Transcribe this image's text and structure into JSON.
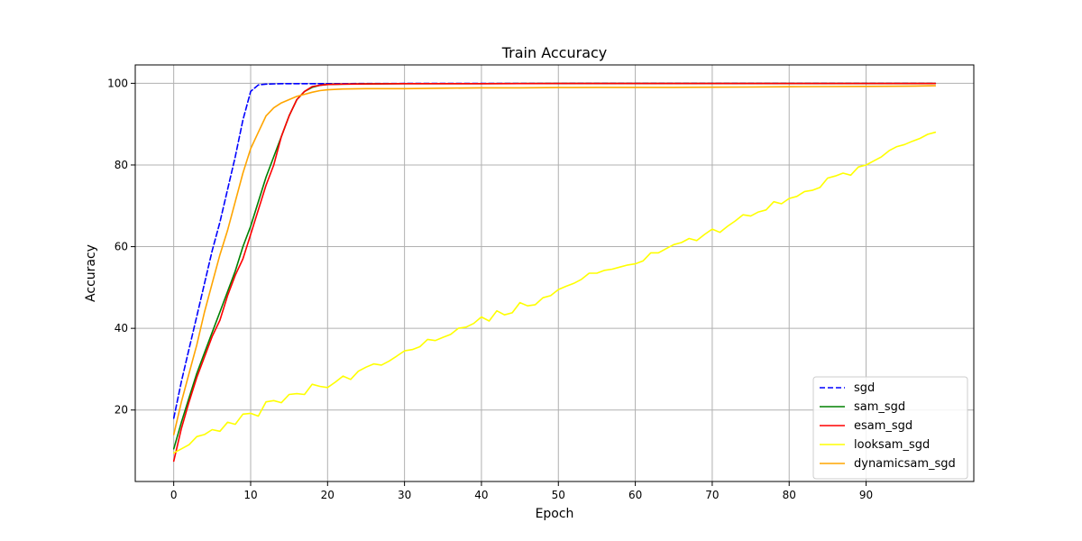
{
  "chart_data": {
    "type": "line",
    "title": "Train Accuracy",
    "xlabel": "Epoch",
    "ylabel": "Accuracy",
    "xlim": [
      -5,
      104
    ],
    "ylim": [
      2.5,
      104.5
    ],
    "xticks": [
      0,
      10,
      20,
      30,
      40,
      50,
      60,
      70,
      80,
      90
    ],
    "yticks": [
      20,
      40,
      60,
      80,
      100
    ],
    "grid": true,
    "legend_position": "bottom-right",
    "series": [
      {
        "name": "sgd",
        "color": "#0000ff",
        "dash": true,
        "points": [
          [
            0,
            18
          ],
          [
            1,
            27
          ],
          [
            2,
            35
          ],
          [
            3,
            43
          ],
          [
            4,
            51
          ],
          [
            5,
            59
          ],
          [
            6,
            66
          ],
          [
            7,
            74
          ],
          [
            8,
            82
          ],
          [
            9,
            91
          ],
          [
            10,
            98
          ],
          [
            11,
            99.6
          ],
          [
            12,
            99.8
          ],
          [
            14,
            99.9
          ],
          [
            20,
            99.9
          ],
          [
            30,
            99.95
          ],
          [
            40,
            99.97
          ],
          [
            50,
            99.98
          ],
          [
            60,
            99.99
          ],
          [
            70,
            100
          ],
          [
            80,
            100
          ],
          [
            90,
            100
          ],
          [
            99,
            100
          ]
        ]
      },
      {
        "name": "sam_sgd",
        "color": "#008000",
        "dash": false,
        "points": [
          [
            0,
            10.5
          ],
          [
            1,
            17
          ],
          [
            2,
            23
          ],
          [
            3,
            29
          ],
          [
            4,
            34
          ],
          [
            5,
            39
          ],
          [
            6,
            44
          ],
          [
            7,
            49
          ],
          [
            8,
            54
          ],
          [
            9,
            60
          ],
          [
            10,
            65
          ],
          [
            11,
            71
          ],
          [
            12,
            77
          ],
          [
            13,
            82
          ],
          [
            14,
            87
          ],
          [
            15,
            92
          ],
          [
            16,
            96
          ],
          [
            17,
            98
          ],
          [
            18,
            99
          ],
          [
            19,
            99.5
          ],
          [
            20,
            99.7
          ],
          [
            22,
            99.8
          ],
          [
            25,
            99.85
          ],
          [
            30,
            99.9
          ],
          [
            40,
            99.9
          ],
          [
            50,
            99.95
          ],
          [
            60,
            99.95
          ],
          [
            70,
            99.95
          ],
          [
            80,
            99.95
          ],
          [
            90,
            99.95
          ],
          [
            99,
            99.95
          ]
        ]
      },
      {
        "name": "esam_sgd",
        "color": "#ff0000",
        "dash": false,
        "points": [
          [
            0,
            7.5
          ],
          [
            1,
            15.5
          ],
          [
            2,
            22
          ],
          [
            3,
            28
          ],
          [
            4,
            33
          ],
          [
            5,
            38
          ],
          [
            6,
            42
          ],
          [
            7,
            48
          ],
          [
            8,
            53
          ],
          [
            9,
            57
          ],
          [
            10,
            63
          ],
          [
            11,
            69
          ],
          [
            12,
            75
          ],
          [
            13,
            80
          ],
          [
            14,
            87
          ],
          [
            15,
            92
          ],
          [
            16,
            96
          ],
          [
            17,
            98
          ],
          [
            18,
            99.2
          ],
          [
            19,
            99.5
          ],
          [
            20,
            99.7
          ],
          [
            22,
            99.8
          ],
          [
            25,
            99.85
          ],
          [
            30,
            99.9
          ],
          [
            40,
            99.9
          ],
          [
            50,
            99.95
          ],
          [
            60,
            99.95
          ],
          [
            70,
            99.95
          ],
          [
            80,
            99.95
          ],
          [
            90,
            99.95
          ],
          [
            99,
            99.95
          ]
        ]
      },
      {
        "name": "looksam_sgd",
        "color": "#ffff00",
        "dash": false,
        "points": [
          [
            0,
            9.5
          ],
          [
            1,
            10.5
          ],
          [
            2,
            11.5
          ],
          [
            3,
            13.5
          ],
          [
            4,
            14
          ],
          [
            5,
            15.2
          ],
          [
            6,
            14.8
          ],
          [
            7,
            17
          ],
          [
            8,
            16.5
          ],
          [
            9,
            19
          ],
          [
            10,
            19.2
          ],
          [
            11,
            18.5
          ],
          [
            12,
            22
          ],
          [
            13,
            22.3
          ],
          [
            14,
            21.8
          ],
          [
            15,
            23.8
          ],
          [
            16,
            24
          ],
          [
            17,
            23.8
          ],
          [
            18,
            26.3
          ],
          [
            19,
            25.8
          ],
          [
            20,
            25.5
          ],
          [
            21,
            26.8
          ],
          [
            22,
            28.3
          ],
          [
            23,
            27.5
          ],
          [
            24,
            29.5
          ],
          [
            25,
            30.5
          ],
          [
            26,
            31.3
          ],
          [
            27,
            31
          ],
          [
            28,
            32
          ],
          [
            29,
            33.2
          ],
          [
            30,
            34.5
          ],
          [
            31,
            34.8
          ],
          [
            32,
            35.5
          ],
          [
            33,
            37.3
          ],
          [
            34,
            37
          ],
          [
            35,
            37.8
          ],
          [
            36,
            38.5
          ],
          [
            37,
            40
          ],
          [
            38,
            40.3
          ],
          [
            39,
            41.2
          ],
          [
            40,
            42.8
          ],
          [
            41,
            41.8
          ],
          [
            42,
            44.3
          ],
          [
            43,
            43.3
          ],
          [
            44,
            43.8
          ],
          [
            45,
            46.3
          ],
          [
            46,
            45.5
          ],
          [
            47,
            45.8
          ],
          [
            48,
            47.5
          ],
          [
            49,
            48
          ],
          [
            50,
            49.5
          ],
          [
            51,
            50.3
          ],
          [
            52,
            51
          ],
          [
            53,
            52
          ],
          [
            54,
            53.5
          ],
          [
            55,
            53.5
          ],
          [
            56,
            54.2
          ],
          [
            57,
            54.5
          ],
          [
            58,
            55
          ],
          [
            59,
            55.5
          ],
          [
            60,
            55.8
          ],
          [
            61,
            56.5
          ],
          [
            62,
            58.5
          ],
          [
            63,
            58.5
          ],
          [
            64,
            59.5
          ],
          [
            65,
            60.5
          ],
          [
            66,
            61
          ],
          [
            67,
            62
          ],
          [
            68,
            61.5
          ],
          [
            69,
            63
          ],
          [
            70,
            64.3
          ],
          [
            71,
            63.5
          ],
          [
            72,
            65
          ],
          [
            73,
            66.3
          ],
          [
            74,
            67.8
          ],
          [
            75,
            67.5
          ],
          [
            76,
            68.5
          ],
          [
            77,
            69
          ],
          [
            78,
            71
          ],
          [
            79,
            70.5
          ],
          [
            80,
            71.8
          ],
          [
            81,
            72.3
          ],
          [
            82,
            73.5
          ],
          [
            83,
            73.8
          ],
          [
            84,
            74.5
          ],
          [
            85,
            76.8
          ],
          [
            86,
            77.3
          ],
          [
            87,
            78
          ],
          [
            88,
            77.5
          ],
          [
            89,
            79.5
          ],
          [
            90,
            80
          ],
          [
            91,
            81
          ],
          [
            92,
            82
          ],
          [
            93,
            83.5
          ],
          [
            94,
            84.5
          ],
          [
            95,
            85
          ],
          [
            96,
            85.8
          ],
          [
            97,
            86.5
          ],
          [
            98,
            87.5
          ],
          [
            99,
            88
          ]
        ]
      },
      {
        "name": "dynamicsam_sgd",
        "color": "#ffa500",
        "dash": false,
        "points": [
          [
            0,
            14
          ],
          [
            1,
            22
          ],
          [
            2,
            29
          ],
          [
            3,
            36
          ],
          [
            4,
            44
          ],
          [
            5,
            51
          ],
          [
            6,
            58
          ],
          [
            7,
            64
          ],
          [
            8,
            71
          ],
          [
            9,
            78
          ],
          [
            10,
            84
          ],
          [
            11,
            88
          ],
          [
            12,
            92
          ],
          [
            13,
            94
          ],
          [
            14,
            95.2
          ],
          [
            15,
            96
          ],
          [
            16,
            96.8
          ],
          [
            17,
            97.3
          ],
          [
            18,
            97.8
          ],
          [
            19,
            98.2
          ],
          [
            20,
            98.4
          ],
          [
            22,
            98.6
          ],
          [
            25,
            98.7
          ],
          [
            30,
            98.7
          ],
          [
            35,
            98.8
          ],
          [
            40,
            98.9
          ],
          [
            45,
            98.9
          ],
          [
            50,
            98.95
          ],
          [
            55,
            99
          ],
          [
            60,
            99
          ],
          [
            65,
            99
          ],
          [
            70,
            99.05
          ],
          [
            75,
            99.1
          ],
          [
            80,
            99.15
          ],
          [
            85,
            99.2
          ],
          [
            90,
            99.25
          ],
          [
            95,
            99.3
          ],
          [
            99,
            99.4
          ]
        ]
      }
    ]
  }
}
